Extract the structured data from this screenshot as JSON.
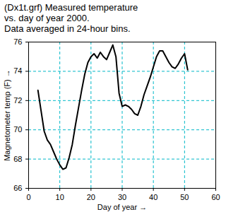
{
  "chart_data": {
    "type": "line",
    "title": "(Dx1t.grf) Measured temperature\nvs. day of year 2000.\nData averaged in 24-hour bins.",
    "x_label": "Day of year",
    "y_label": "Magnetometer temp (F)",
    "x": [
      3,
      4,
      5,
      6,
      7,
      8,
      9,
      10,
      11,
      12,
      13,
      14,
      15,
      16,
      17,
      18,
      19,
      20,
      21,
      22,
      23,
      24,
      25,
      26,
      27,
      28,
      29,
      30,
      31,
      32,
      33,
      34,
      35,
      36,
      37,
      38,
      39,
      40,
      41,
      42,
      43,
      44,
      45,
      46,
      47,
      48,
      49,
      50,
      51
    ],
    "values": [
      72.7,
      71.3,
      69.9,
      69.3,
      69.0,
      68.5,
      68.0,
      67.6,
      67.3,
      67.4,
      68.1,
      69.0,
      70.3,
      71.5,
      72.7,
      73.8,
      74.6,
      75.0,
      75.2,
      74.9,
      75.3,
      75.0,
      74.8,
      75.3,
      75.8,
      75.0,
      72.5,
      71.6,
      71.7,
      71.6,
      71.4,
      71.1,
      71.0,
      71.6,
      72.4,
      73.0,
      73.6,
      74.3,
      75.0,
      75.4,
      75.4,
      75.0,
      74.6,
      74.3,
      74.2,
      74.5,
      74.9,
      75.2,
      74.1
    ],
    "color": "#000000",
    "xlim": [
      0,
      60
    ],
    "xticks": [
      0,
      10,
      20,
      30,
      40,
      50,
      60
    ],
    "ylim": [
      66,
      76
    ],
    "yticks": [
      66,
      68,
      70,
      72,
      74,
      76
    ],
    "grid": true
  }
}
